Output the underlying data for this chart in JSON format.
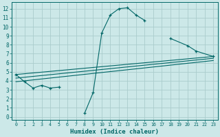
{
  "title": "",
  "xlabel": "Humidex (Indice chaleur)",
  "ylabel": "",
  "bg_color": "#cce8e8",
  "grid_color": "#aacccc",
  "line_color": "#006666",
  "x_ticks": [
    0,
    1,
    2,
    3,
    4,
    5,
    6,
    7,
    8,
    9,
    10,
    11,
    12,
    13,
    14,
    15,
    16,
    17,
    18,
    19,
    20,
    21,
    22,
    23
  ],
  "y_ticks": [
    0,
    1,
    2,
    3,
    4,
    5,
    6,
    7,
    8,
    9,
    10,
    11,
    12
  ],
  "xlim": [
    -0.5,
    23.5
  ],
  "ylim": [
    -0.3,
    12.7
  ],
  "curve_x": [
    0,
    1,
    2,
    3,
    4,
    5,
    8,
    9,
    10,
    11,
    12,
    13,
    14,
    15,
    18,
    20,
    21,
    23
  ],
  "curve_y": [
    4.7,
    3.9,
    3.2,
    3.5,
    3.2,
    3.3,
    0.4,
    2.7,
    9.3,
    11.3,
    12.0,
    12.1,
    11.3,
    10.7,
    8.7,
    7.9,
    7.3,
    6.7
  ],
  "curve_segments": [
    {
      "x": [
        0,
        1,
        2,
        3,
        4,
        5
      ],
      "y": [
        4.7,
        3.9,
        3.2,
        3.5,
        3.2,
        3.3
      ]
    },
    {
      "x": [
        8,
        9,
        10,
        11,
        12,
        13,
        14,
        15
      ],
      "y": [
        0.4,
        2.7,
        9.3,
        11.3,
        12.0,
        12.1,
        11.3,
        10.7
      ]
    },
    {
      "x": [
        18,
        20,
        21,
        23
      ],
      "y": [
        8.7,
        7.9,
        7.3,
        6.7
      ]
    }
  ],
  "line1": {
    "x": [
      0,
      23
    ],
    "y": [
      4.7,
      6.7
    ]
  },
  "line2": {
    "x": [
      0,
      23
    ],
    "y": [
      4.3,
      6.5
    ]
  },
  "line3": {
    "x": [
      0,
      23
    ],
    "y": [
      3.9,
      6.25
    ]
  }
}
